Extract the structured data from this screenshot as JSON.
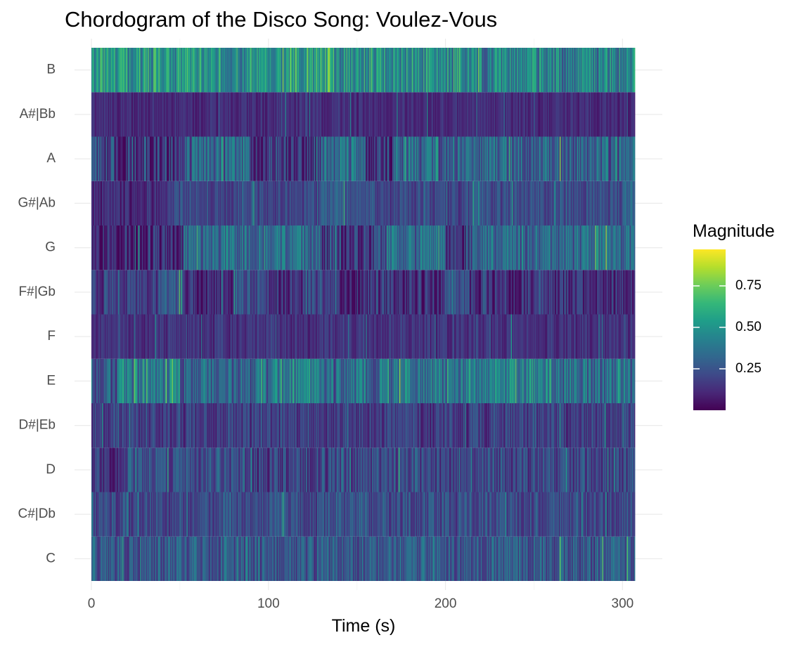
{
  "chart_data": {
    "type": "heatmap",
    "title": "Chordogram of the Disco Song: Voulez-Vous",
    "xlabel": "Time (s)",
    "ylabel": "",
    "xlim": [
      0,
      307
    ],
    "x_ticks": [
      0,
      100,
      200,
      300
    ],
    "x_tick_labels": [
      "0",
      "100",
      "200",
      "300"
    ],
    "y_categories": [
      "C",
      "C#|Db",
      "D",
      "D#|Eb",
      "E",
      "F",
      "F#|Gb",
      "G",
      "G#|Ab",
      "A",
      "A#|Bb",
      "B"
    ],
    "time_step": 0.5,
    "pitch_profiles": [
      {
        "pitch": "C",
        "base": 0.27,
        "var": 0.16,
        "segments": [
          [
            0,
            307,
            0.27
          ]
        ]
      },
      {
        "pitch": "C#|Db",
        "base": 0.22,
        "var": 0.13,
        "segments": [
          [
            0,
            307,
            0.22
          ]
        ]
      },
      {
        "pitch": "D",
        "base": 0.2,
        "var": 0.14,
        "segments": [
          [
            0,
            20,
            0.14
          ],
          [
            20,
            90,
            0.24
          ],
          [
            90,
            130,
            0.18
          ],
          [
            130,
            307,
            0.21
          ]
        ]
      },
      {
        "pitch": "D#|Eb",
        "base": 0.18,
        "var": 0.12,
        "segments": [
          [
            0,
            307,
            0.18
          ]
        ]
      },
      {
        "pitch": "E",
        "base": 0.35,
        "var": 0.2,
        "segments": [
          [
            0,
            15,
            0.28
          ],
          [
            15,
            50,
            0.42
          ],
          [
            50,
            100,
            0.33
          ],
          [
            100,
            130,
            0.42
          ],
          [
            130,
            165,
            0.34
          ],
          [
            165,
            213,
            0.38
          ],
          [
            213,
            260,
            0.42
          ],
          [
            260,
            307,
            0.34
          ]
        ]
      },
      {
        "pitch": "F",
        "base": 0.14,
        "var": 0.08,
        "segments": [
          [
            0,
            307,
            0.14
          ]
        ]
      },
      {
        "pitch": "F#|Gb",
        "base": 0.16,
        "var": 0.14,
        "segments": [
          [
            0,
            40,
            0.18
          ],
          [
            40,
            52,
            0.28
          ],
          [
            52,
            80,
            0.13
          ],
          [
            80,
            100,
            0.22
          ],
          [
            100,
            120,
            0.13
          ],
          [
            120,
            140,
            0.22
          ],
          [
            140,
            170,
            0.14
          ],
          [
            170,
            200,
            0.12
          ],
          [
            200,
            213,
            0.26
          ],
          [
            213,
            307,
            0.12
          ]
        ]
      },
      {
        "pitch": "G",
        "base": 0.25,
        "var": 0.18,
        "segments": [
          [
            0,
            52,
            0.1
          ],
          [
            52,
            130,
            0.34
          ],
          [
            130,
            168,
            0.18
          ],
          [
            168,
            200,
            0.34
          ],
          [
            200,
            215,
            0.14
          ],
          [
            215,
            307,
            0.32
          ]
        ]
      },
      {
        "pitch": "G#|Ab",
        "base": 0.2,
        "var": 0.1,
        "segments": [
          [
            0,
            40,
            0.12
          ],
          [
            40,
            130,
            0.2
          ],
          [
            130,
            160,
            0.28
          ],
          [
            160,
            213,
            0.2
          ],
          [
            213,
            300,
            0.22
          ],
          [
            300,
            307,
            0.32
          ]
        ]
      },
      {
        "pitch": "A",
        "base": 0.25,
        "var": 0.2,
        "segments": [
          [
            0,
            52,
            0.16
          ],
          [
            52,
            90,
            0.3
          ],
          [
            90,
            130,
            0.16
          ],
          [
            130,
            155,
            0.34
          ],
          [
            155,
            170,
            0.13
          ],
          [
            170,
            213,
            0.32
          ],
          [
            213,
            245,
            0.3
          ],
          [
            245,
            307,
            0.3
          ]
        ]
      },
      {
        "pitch": "A#|Bb",
        "base": 0.12,
        "var": 0.07,
        "segments": [
          [
            0,
            307,
            0.12
          ]
        ]
      },
      {
        "pitch": "B",
        "base": 0.48,
        "var": 0.22,
        "segments": [
          [
            0,
            40,
            0.52
          ],
          [
            40,
            100,
            0.5
          ],
          [
            100,
            140,
            0.55
          ],
          [
            140,
            213,
            0.48
          ],
          [
            213,
            250,
            0.44
          ],
          [
            250,
            307,
            0.42
          ]
        ]
      }
    ],
    "colorscale": "viridis",
    "colorscale_stops": [
      "#440154",
      "#482878",
      "#3E4A89",
      "#31688E",
      "#26828E",
      "#1F9E89",
      "#35B779",
      "#6DCD59",
      "#B4DE2C",
      "#FDE725"
    ],
    "color_range": [
      0.0,
      0.97
    ],
    "legend": {
      "title": "Magnitude",
      "ticks": [
        0.25,
        0.5,
        0.75
      ],
      "tick_labels": [
        "0.25",
        "0.50",
        "0.75"
      ],
      "position": "right"
    },
    "grid": true
  }
}
